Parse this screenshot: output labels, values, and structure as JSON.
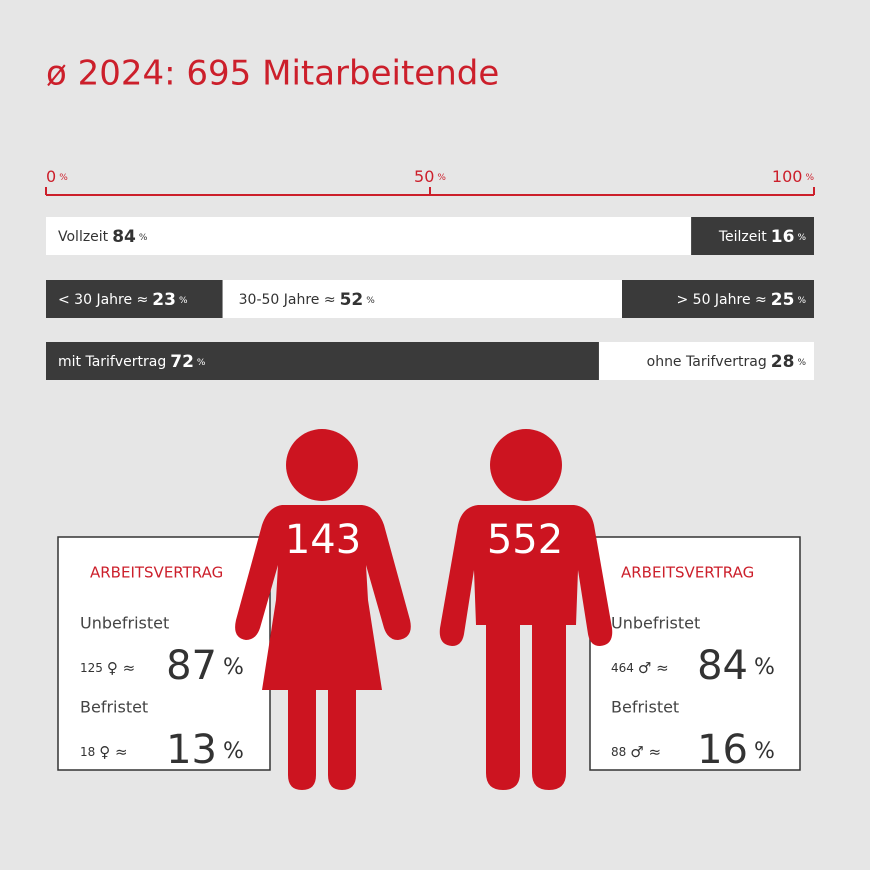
{
  "title": "ø 2024: 695 Mitarbeitende",
  "scale": {
    "ticks": [
      0,
      50,
      100
    ],
    "unit": "%"
  },
  "bars": [
    {
      "segments": [
        {
          "label": "Vollzeit",
          "value": 84,
          "color": "#ffffff"
        },
        {
          "label": "Teilzeit",
          "value": 16,
          "color": "#3a3a3a"
        }
      ]
    },
    {
      "segments": [
        {
          "label": "< 30 Jahre ≈",
          "value": 23,
          "color": "#3a3a3a"
        },
        {
          "label": "30-50 Jahre ≈",
          "value": 52,
          "color": "#ffffff"
        },
        {
          "label": "> 50 Jahre ≈",
          "value": 25,
          "color": "#3a3a3a"
        }
      ]
    },
    {
      "segments": [
        {
          "label": "mit Tarifvertrag",
          "value": 72,
          "color": "#3a3a3a"
        },
        {
          "label": "ohne Tarifvertrag",
          "value": 28,
          "color": "#ffffff"
        }
      ]
    }
  ],
  "groups": [
    {
      "count": 143,
      "heading": "ARBEITSVERTRAG",
      "symbol": "♀ ≈",
      "rows": [
        {
          "label": "Unbefristet",
          "count": 125,
          "percent": 87
        },
        {
          "label": "Befristet",
          "count": 18,
          "percent": 13
        }
      ]
    },
    {
      "count": 552,
      "heading": "ARBEITSVERTRAG",
      "symbol": "♂ ≈",
      "rows": [
        {
          "label": "Unbefristet",
          "count": 464,
          "percent": 84
        },
        {
          "label": "Befristet",
          "count": 88,
          "percent": 16
        }
      ]
    }
  ]
}
